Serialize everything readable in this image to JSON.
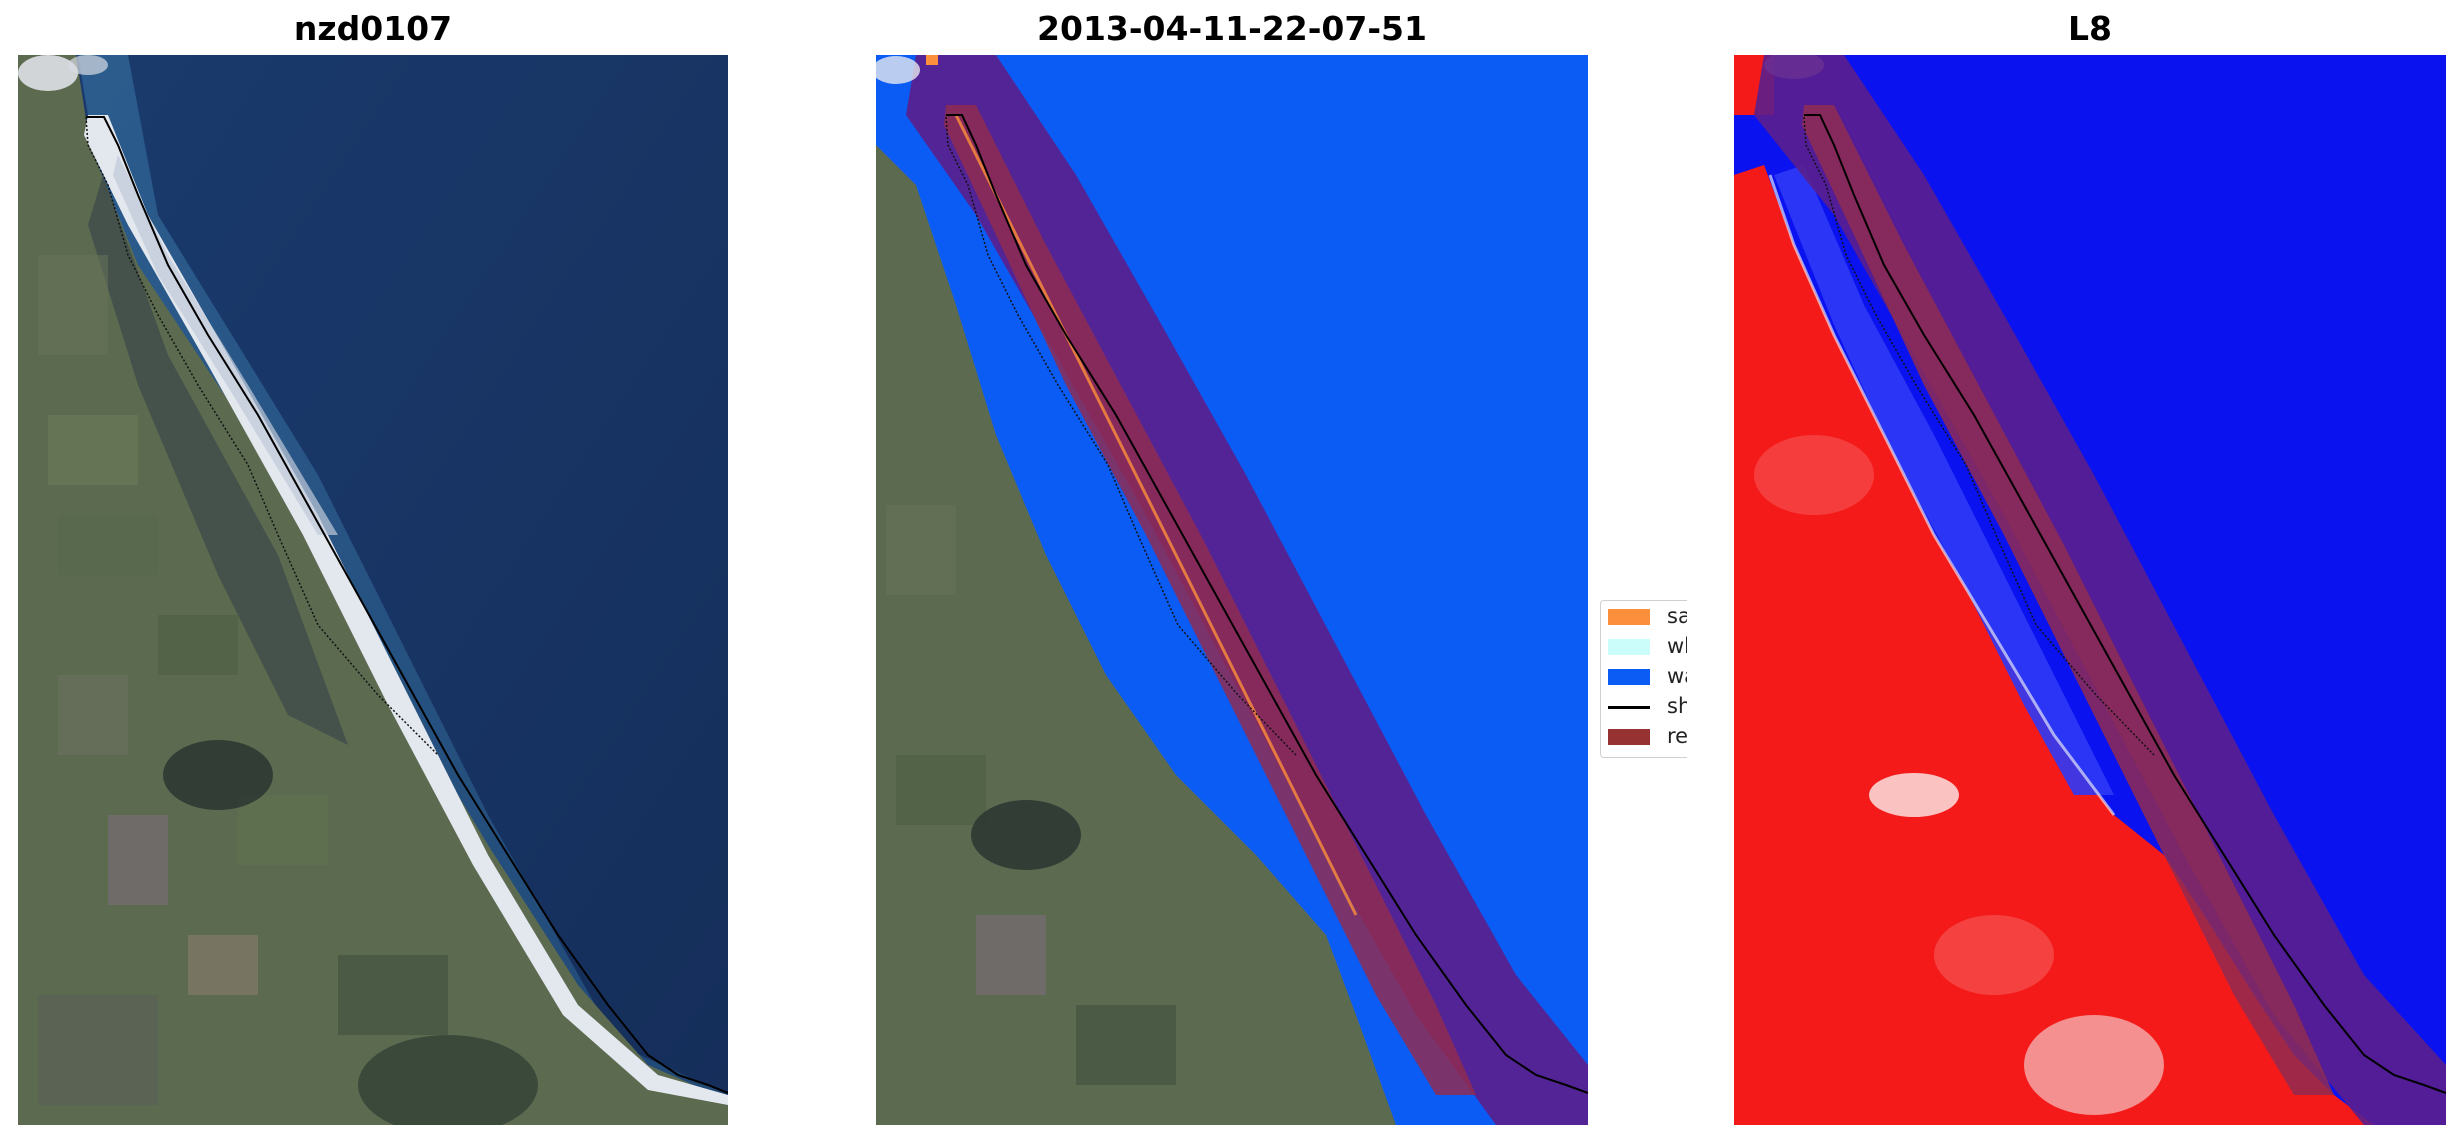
{
  "panels": [
    {
      "title": "nzd0107"
    },
    {
      "title": "2013-04-11-22-07-51"
    },
    {
      "title": "L8"
    }
  ],
  "legend": {
    "items": [
      {
        "label": "sand",
        "color": "#fb8f3c"
      },
      {
        "label": "whitewater",
        "color": "#cbfdfb"
      },
      {
        "label": "water",
        "color": "#0a5cf5"
      },
      {
        "label": "shoreline",
        "color": "#000000"
      },
      {
        "label": "reference",
        "color": "#963232"
      }
    ]
  },
  "colors": {
    "ocean_rgb": "#183566",
    "land_rgb": "#58694e",
    "beach": "#dfe3ea",
    "classified_water": "#0a5cf5",
    "buffer": "#5a1f8c",
    "reference_band": "#8f2b52",
    "index_land": "#f41a1a",
    "index_water": "#0a13ef",
    "shoreline": "#000000"
  }
}
